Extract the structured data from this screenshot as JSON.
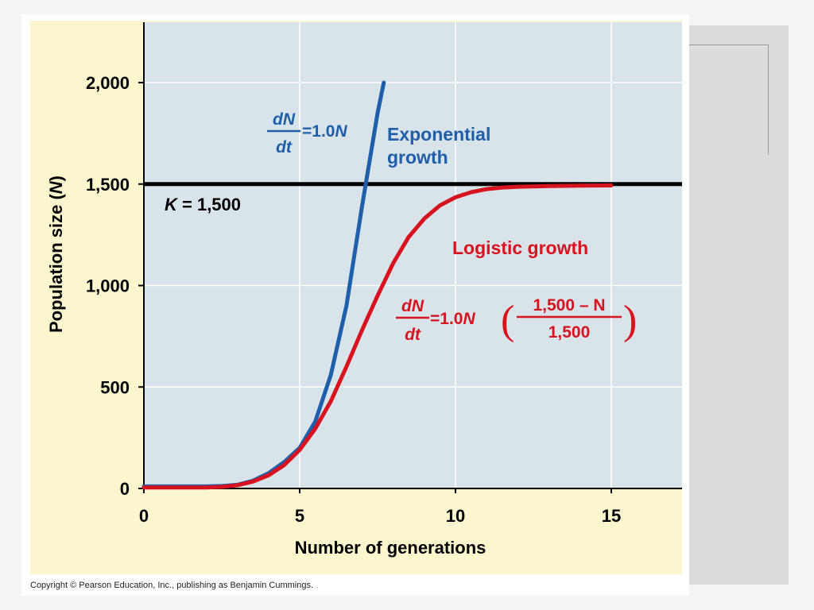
{
  "chart_data": {
    "type": "line",
    "xlabel": "Number of generations",
    "ylabel_prefix": "Population size (",
    "ylabel_var": "N",
    "ylabel_suffix": ")",
    "xlim": [
      0,
      17
    ],
    "ylim": [
      0,
      2250
    ],
    "x_ticks": [
      0,
      5,
      10,
      15
    ],
    "x_tick_labels": [
      "0",
      "5",
      "10",
      "15"
    ],
    "y_ticks": [
      0,
      500,
      1000,
      1500,
      2000
    ],
    "y_tick_labels": [
      "0",
      "500",
      "1,000",
      "1,500",
      "2,000"
    ],
    "grid": true,
    "carrying_capacity": {
      "value": 1500,
      "label_var": "K",
      "label_rest": " = 1,500"
    },
    "series": [
      {
        "name_line1": "Exponential",
        "name_line2": "growth",
        "color": "#1f5ea8",
        "x": [
          0,
          1,
          2,
          2.5,
          3,
          3.5,
          4,
          4.5,
          5,
          5.5,
          6,
          6.5,
          7,
          7.5,
          7.7
        ],
        "y": [
          10,
          10,
          10,
          12,
          18,
          38,
          75,
          130,
          200,
          330,
          560,
          900,
          1390,
          1850,
          2000
        ]
      },
      {
        "name": "Logistic growth",
        "color": "#d6131f",
        "x": [
          0,
          1,
          2,
          2.5,
          3,
          3.5,
          4,
          4.5,
          5,
          5.5,
          6,
          6.5,
          7,
          7.5,
          8,
          8.5,
          9,
          9.5,
          10,
          10.5,
          11,
          11.5,
          12,
          13,
          14,
          15
        ],
        "y": [
          5,
          5,
          5,
          8,
          16,
          34,
          65,
          115,
          190,
          295,
          430,
          600,
          780,
          950,
          1110,
          1240,
          1330,
          1395,
          1435,
          1460,
          1475,
          1483,
          1487,
          1490,
          1492,
          1493
        ]
      }
    ],
    "equations": {
      "exponential": {
        "num": "dN",
        "den": "dt",
        "rhs_num": "=1.0",
        "rhs_var": "N"
      },
      "logistic": {
        "num": "dN",
        "den": "dt",
        "rhs_num": "=1.0",
        "rhs_var": "N",
        "frac_num": "1,500 – N",
        "frac_den": "1,500"
      }
    },
    "colors": {
      "plot_background": "#d9e3ea",
      "figure_background": "#fcf6cf",
      "capacity_line": "#000000",
      "grid": "#ffffff"
    }
  },
  "copyright": "Copyright © Pearson Education, Inc., publishing as Benjamin Cummings."
}
